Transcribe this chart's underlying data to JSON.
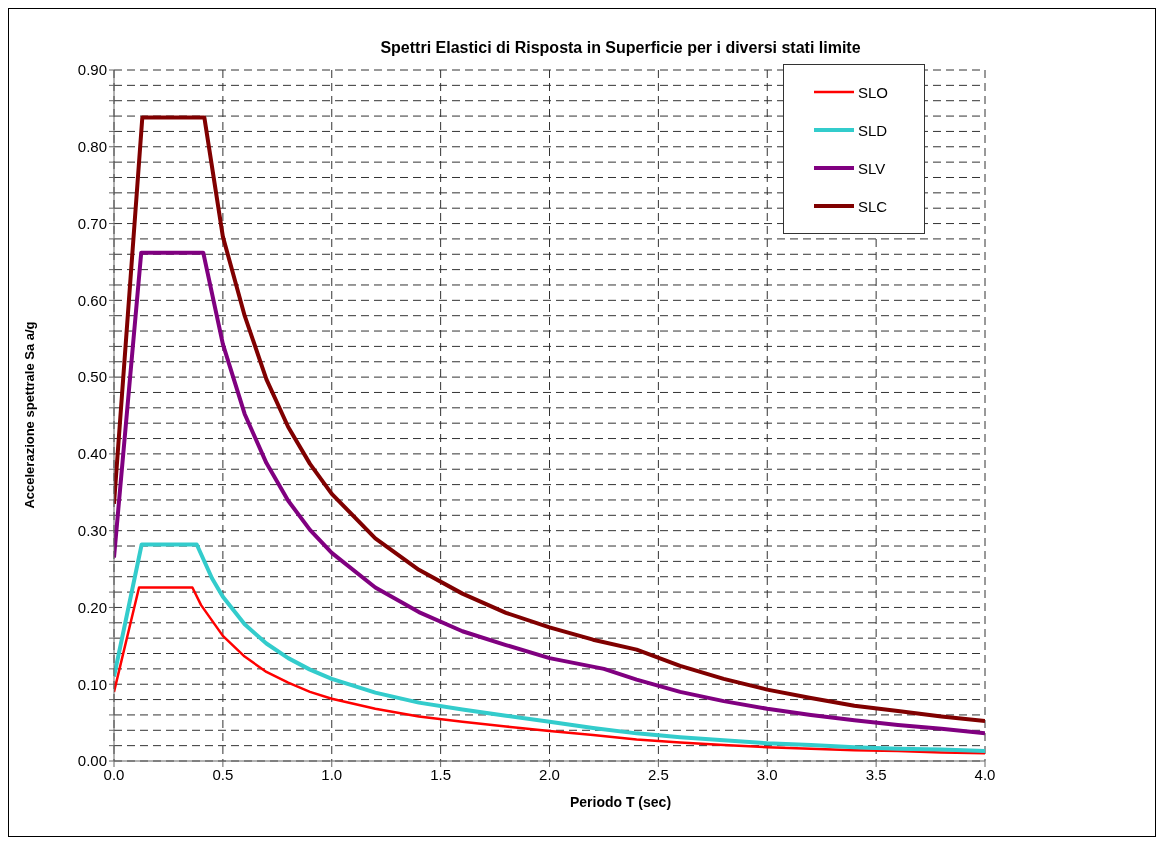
{
  "chart_data": {
    "type": "line",
    "title": "Spettri Elastici di Risposta in Superficie per i diversi stati limite",
    "xlabel": "Periodo T (sec)",
    "ylabel": "Accelerazione spettrale Sa a/g",
    "xlim": [
      0,
      4
    ],
    "xticks": [
      {
        "value": 0,
        "label": "0.0"
      },
      {
        "value": 0.5,
        "label": "0.5"
      },
      {
        "value": 1,
        "label": "1.0"
      },
      {
        "value": 1.5,
        "label": "1.5"
      },
      {
        "value": 2,
        "label": "2.0"
      },
      {
        "value": 2.5,
        "label": "2.5"
      },
      {
        "value": 3,
        "label": "3.0"
      },
      {
        "value": 3.5,
        "label": "3.5"
      },
      {
        "value": 4,
        "label": "4.0"
      }
    ],
    "ylim": [
      0,
      0.9
    ],
    "yticks": [
      {
        "value": 0,
        "label": "0.00"
      },
      {
        "value": 0.02,
        "label": null
      },
      {
        "value": 0.04,
        "label": null
      },
      {
        "value": 0.06,
        "label": null
      },
      {
        "value": 0.08,
        "label": null
      },
      {
        "value": 0.1,
        "label": "0.10"
      },
      {
        "value": 0.12,
        "label": null
      },
      {
        "value": 0.14,
        "label": null
      },
      {
        "value": 0.16,
        "label": null
      },
      {
        "value": 0.18,
        "label": null
      },
      {
        "value": 0.2,
        "label": "0.20"
      },
      {
        "value": 0.22,
        "label": null
      },
      {
        "value": 0.24,
        "label": null
      },
      {
        "value": 0.26,
        "label": null
      },
      {
        "value": 0.28,
        "label": null
      },
      {
        "value": 0.3,
        "label": "0.30"
      },
      {
        "value": 0.32,
        "label": null
      },
      {
        "value": 0.34,
        "label": null
      },
      {
        "value": 0.36,
        "label": null
      },
      {
        "value": 0.38,
        "label": null
      },
      {
        "value": 0.4,
        "label": "0.40"
      },
      {
        "value": 0.42,
        "label": null
      },
      {
        "value": 0.44,
        "label": null
      },
      {
        "value": 0.46,
        "label": null
      },
      {
        "value": 0.48,
        "label": null
      },
      {
        "value": 0.5,
        "label": "0.50"
      },
      {
        "value": 0.52,
        "label": null
      },
      {
        "value": 0.54,
        "label": null
      },
      {
        "value": 0.56,
        "label": null
      },
      {
        "value": 0.58,
        "label": null
      },
      {
        "value": 0.6,
        "label": "0.60"
      },
      {
        "value": 0.62,
        "label": null
      },
      {
        "value": 0.64,
        "label": null
      },
      {
        "value": 0.66,
        "label": null
      },
      {
        "value": 0.68,
        "label": null
      },
      {
        "value": 0.7,
        "label": "0.70"
      },
      {
        "value": 0.72,
        "label": null
      },
      {
        "value": 0.74,
        "label": null
      },
      {
        "value": 0.76,
        "label": null
      },
      {
        "value": 0.78,
        "label": null
      },
      {
        "value": 0.8,
        "label": "0.80"
      },
      {
        "value": 0.82,
        "label": null
      },
      {
        "value": 0.84,
        "label": null
      },
      {
        "value": 0.86,
        "label": null
      },
      {
        "value": 0.88,
        "label": null
      },
      {
        "value": 0.9,
        "label": "0.90"
      }
    ],
    "grid": true,
    "legend": "top right",
    "marker": "none",
    "line_style": "solid",
    "series": [
      {
        "name": "SLO",
        "color": "#ff0000",
        "x": [
          0,
          0.115,
          0.36,
          0.4,
          0.5,
          0.6,
          0.7,
          0.8,
          0.9,
          1.0,
          1.2,
          1.4,
          1.6,
          1.8,
          2.0,
          2.2,
          2.4,
          2.6,
          2.8,
          3.0,
          3.2,
          3.4,
          3.6,
          3.8,
          4.0
        ],
        "values": [
          0.09,
          0.226,
          0.226,
          0.203,
          0.163,
          0.136,
          0.116,
          0.102,
          0.09,
          0.081,
          0.068,
          0.058,
          0.051,
          0.045,
          0.039,
          0.034,
          0.028,
          0.024,
          0.021,
          0.018,
          0.016,
          0.014,
          0.013,
          0.011,
          0.01
        ]
      },
      {
        "name": "SLD",
        "color": "#33cccc",
        "x": [
          0,
          0.127,
          0.38,
          0.45,
          0.5,
          0.6,
          0.7,
          0.8,
          0.9,
          1.0,
          1.2,
          1.4,
          1.6,
          1.8,
          2.0,
          2.2,
          2.4,
          2.6,
          2.8,
          3.0,
          3.2,
          3.4,
          3.6,
          3.8,
          4.0
        ],
        "values": [
          0.11,
          0.282,
          0.282,
          0.238,
          0.214,
          0.178,
          0.153,
          0.134,
          0.119,
          0.107,
          0.089,
          0.076,
          0.067,
          0.059,
          0.051,
          0.043,
          0.036,
          0.031,
          0.027,
          0.023,
          0.021,
          0.018,
          0.016,
          0.015,
          0.013
        ]
      },
      {
        "name": "SLV",
        "color": "#800080",
        "x": [
          0,
          0.125,
          0.41,
          0.5,
          0.6,
          0.7,
          0.8,
          0.9,
          1.0,
          1.2,
          1.4,
          1.6,
          1.8,
          2.0,
          2.25,
          2.4,
          2.6,
          2.8,
          3.0,
          3.2,
          3.4,
          3.6,
          3.8,
          4.0
        ],
        "values": [
          0.265,
          0.662,
          0.662,
          0.543,
          0.452,
          0.388,
          0.339,
          0.301,
          0.271,
          0.226,
          0.194,
          0.169,
          0.151,
          0.134,
          0.12,
          0.106,
          0.09,
          0.078,
          0.068,
          0.06,
          0.053,
          0.047,
          0.042,
          0.036
        ]
      },
      {
        "name": "SLC",
        "color": "#800000",
        "x": [
          0,
          0.13,
          0.415,
          0.5,
          0.6,
          0.7,
          0.8,
          0.9,
          1.0,
          1.2,
          1.4,
          1.6,
          1.8,
          2.0,
          2.2,
          2.4,
          2.6,
          2.8,
          3.0,
          3.2,
          3.4,
          3.6,
          3.8,
          4.0
        ],
        "values": [
          0.335,
          0.838,
          0.838,
          0.683,
          0.58,
          0.497,
          0.435,
          0.387,
          0.348,
          0.29,
          0.249,
          0.218,
          0.193,
          0.174,
          0.158,
          0.145,
          0.124,
          0.107,
          0.093,
          0.082,
          0.072,
          0.065,
          0.058,
          0.052
        ]
      }
    ]
  }
}
